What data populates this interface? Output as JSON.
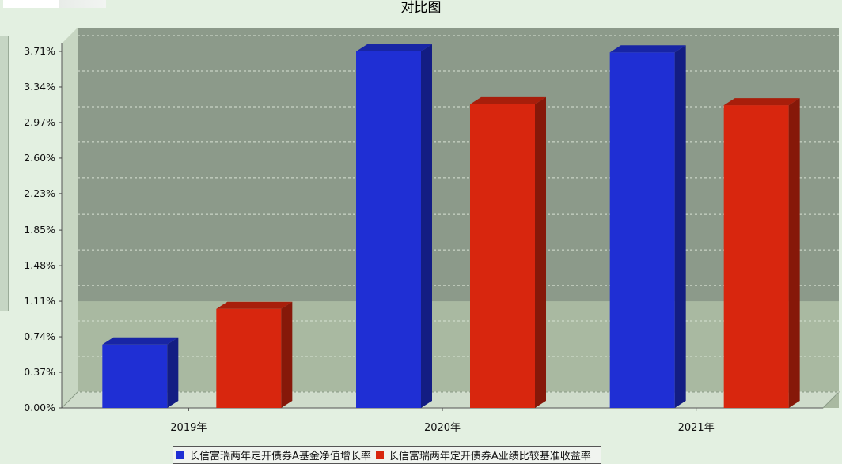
{
  "chart_data": {
    "type": "bar",
    "title": "对比图",
    "categories": [
      "2019年",
      "2020年",
      "2021年"
    ],
    "series": [
      {
        "name": "长信富瑞两年定开债券A基金净值增长率",
        "values": [
          0.66,
          3.71,
          3.7
        ],
        "color": "#1f2fd4"
      },
      {
        "name": "长信富瑞两年定开债券A业绩比较基准收益率",
        "values": [
          1.03,
          3.16,
          3.15
        ],
        "color": "#d8260e"
      }
    ],
    "ylim": [
      0.0,
      3.71
    ],
    "yticks": [
      "0.00%",
      "0.37%",
      "0.74%",
      "1.11%",
      "1.48%",
      "1.85%",
      "2.23%",
      "2.60%",
      "2.97%",
      "3.34%",
      "3.71%"
    ],
    "grid": true,
    "legend_position": "bottom"
  }
}
